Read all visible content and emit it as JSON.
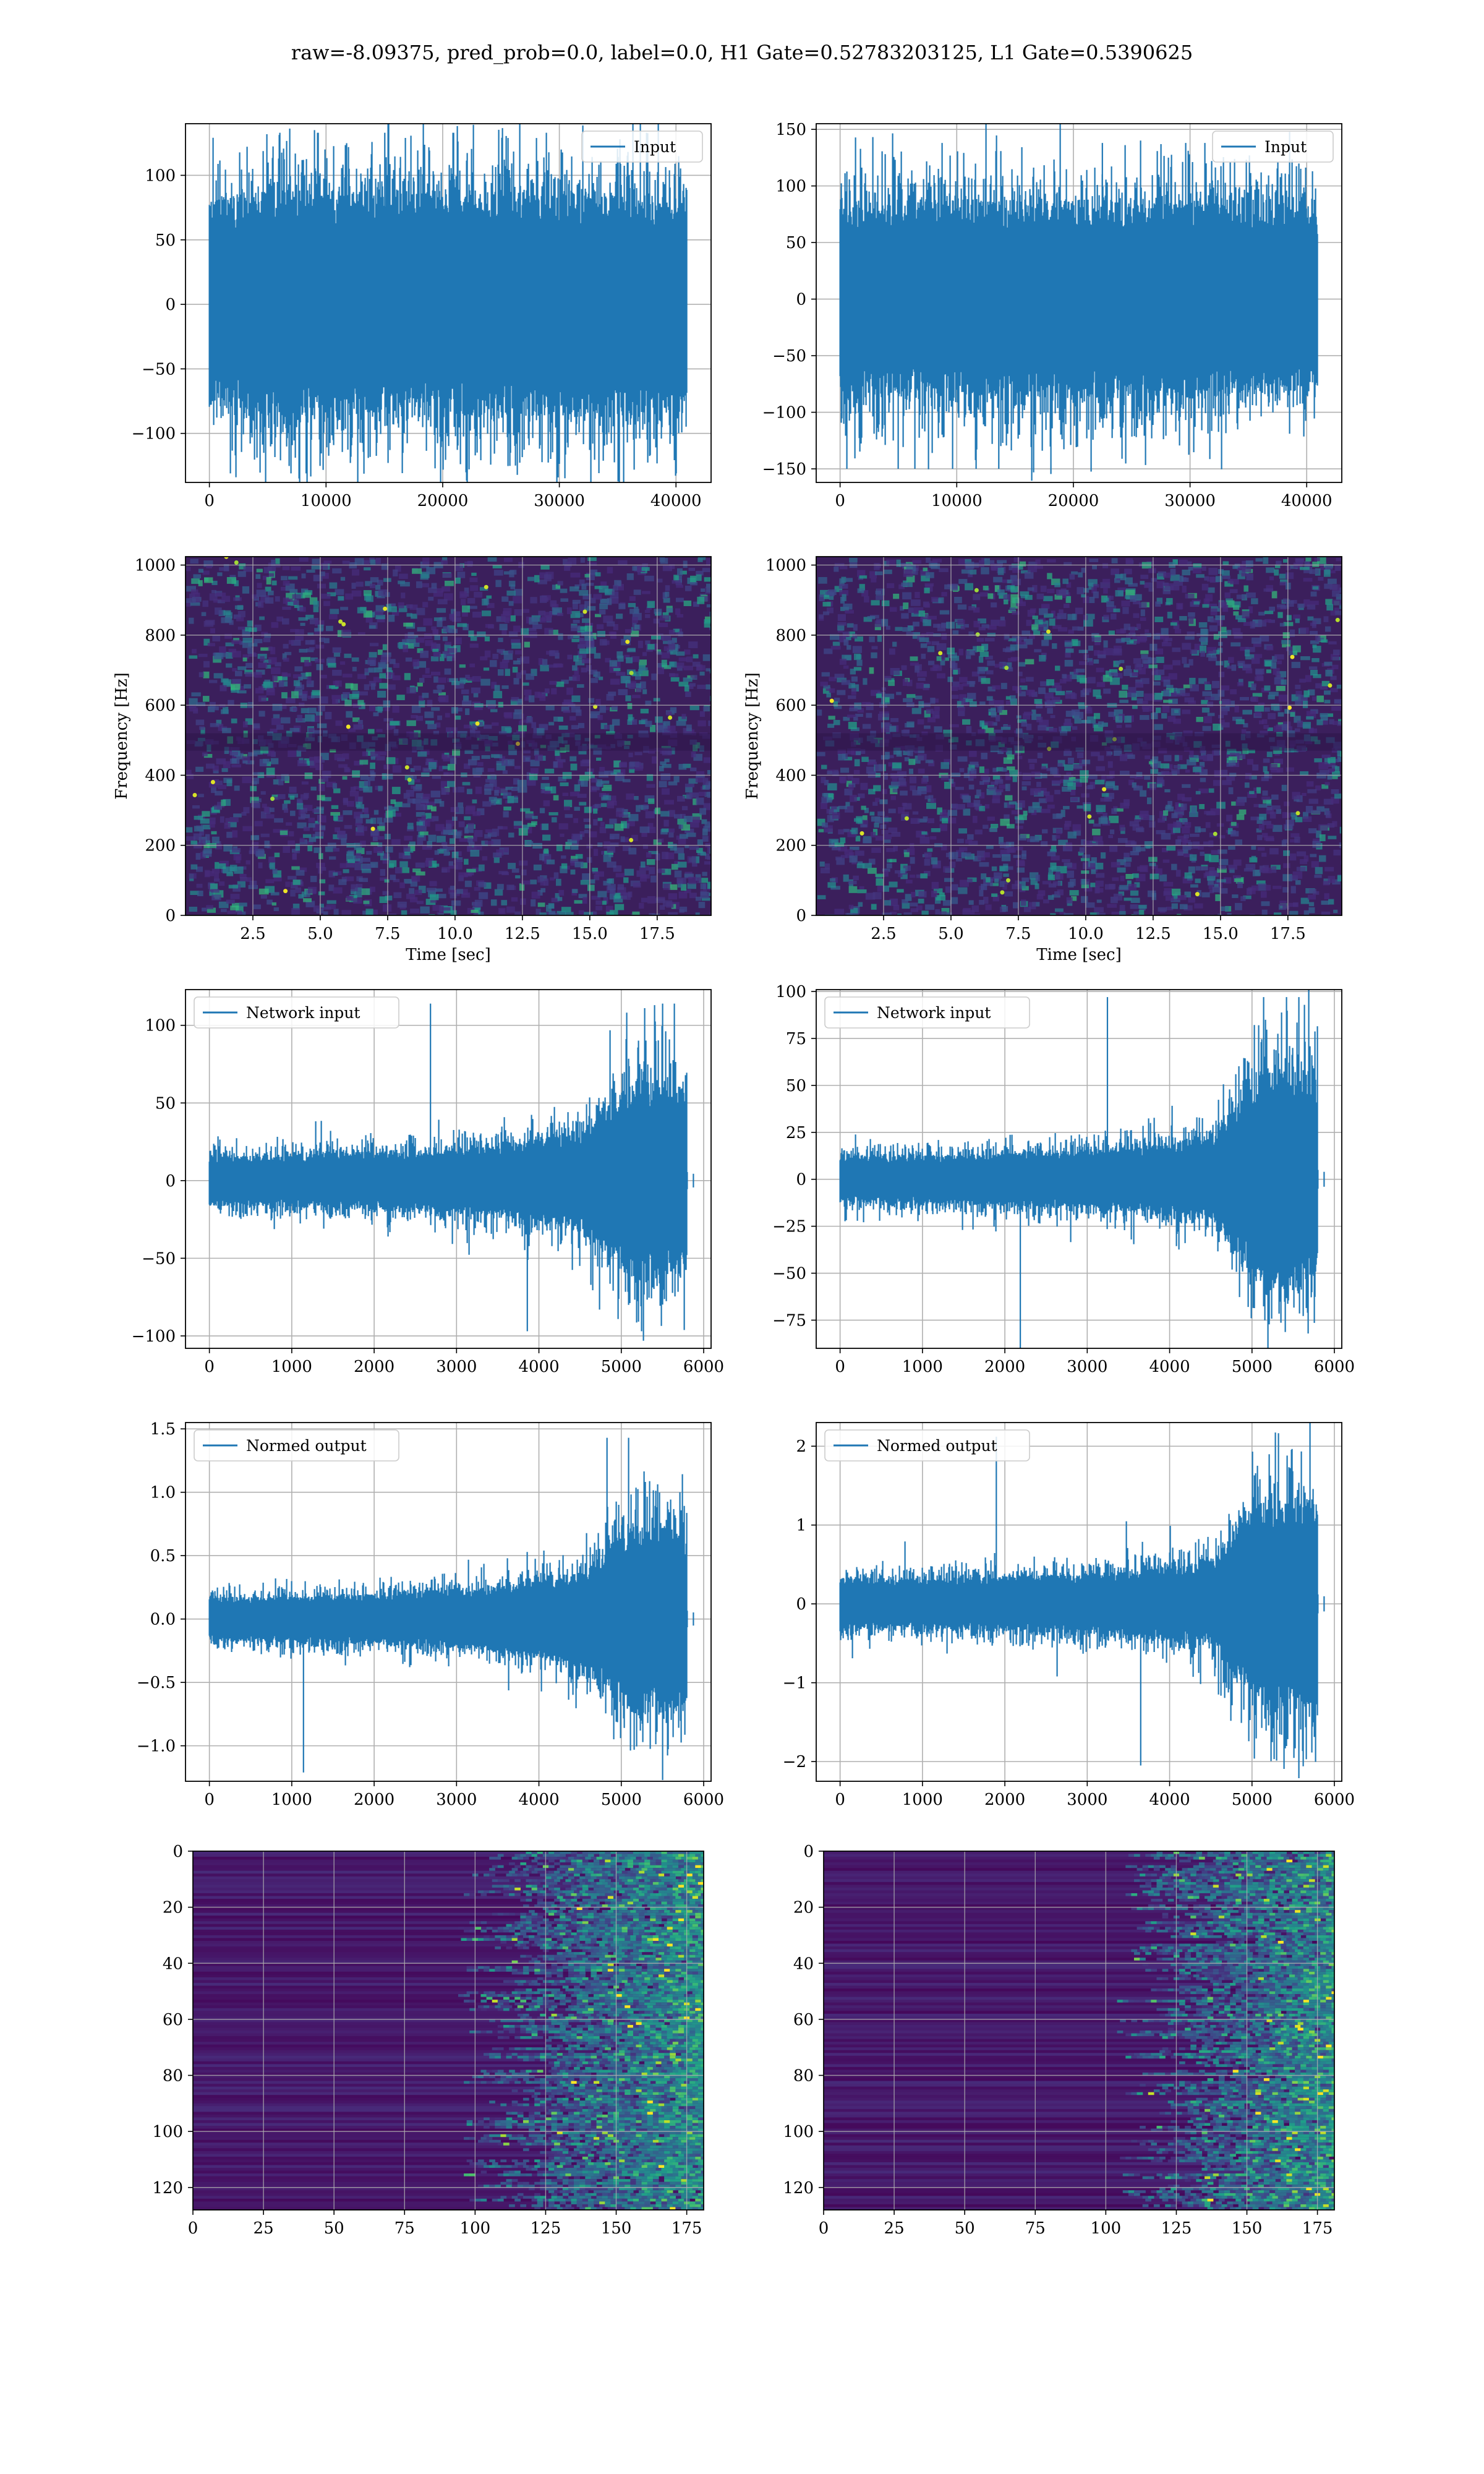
{
  "figure": {
    "suptitle": "raw=-8.09375, pred_prob=0.0, label=0.0, H1 Gate=0.52783203125, L1 Gate=0.5390625",
    "series_color": "#1f77b4",
    "grid_color": "#b0b0b0"
  },
  "chart_data": [
    {
      "id": "h1-input",
      "type": "line",
      "title": "",
      "legend": {
        "label": "Input",
        "placement": "upper-right"
      },
      "xlabel": "",
      "ylabel": "",
      "xlim": [
        -2048,
        43008
      ],
      "ylim": [
        -138,
        140
      ],
      "xticks": [
        0,
        10000,
        20000,
        30000,
        40000
      ],
      "yticks": [
        -100,
        -50,
        0,
        50,
        100
      ],
      "signal": {
        "n_samples": 40960,
        "envelope": [
          75,
          80,
          80,
          80,
          80,
          80,
          80,
          80,
          80,
          75
        ],
        "peak_max": 133,
        "peak_min": -131
      },
      "grid": true
    },
    {
      "id": "l1-input",
      "type": "line",
      "title": "",
      "legend": {
        "label": "Input",
        "placement": "upper-right"
      },
      "xlabel": "",
      "ylabel": "",
      "xlim": [
        -2048,
        43008
      ],
      "ylim": [
        -162,
        155
      ],
      "xticks": [
        0,
        10000,
        20000,
        30000,
        40000
      ],
      "yticks": [
        -150,
        -100,
        -50,
        0,
        50,
        100,
        150
      ],
      "signal": {
        "n_samples": 40960,
        "envelope": [
          75,
          80,
          80,
          80,
          80,
          80,
          80,
          80,
          80,
          70
        ],
        "peak_max": 138,
        "peak_min": -150
      },
      "grid": true
    },
    {
      "id": "h1-spectrogram",
      "type": "heatmap",
      "title": "",
      "xlabel": "Time [sec]",
      "ylabel": "Frequency [Hz]",
      "xlim": [
        0,
        19.5
      ],
      "ylim": [
        0,
        1024
      ],
      "xticks": [
        2.5,
        5.0,
        7.5,
        10.0,
        12.5,
        15.0,
        17.5
      ],
      "yticks": [
        0,
        200,
        400,
        600,
        800,
        1000
      ],
      "colormap": "viridis",
      "background": "#3b1f5c",
      "grid": true
    },
    {
      "id": "l1-spectrogram",
      "type": "heatmap",
      "title": "",
      "xlabel": "Time [sec]",
      "ylabel": "Frequency [Hz]",
      "xlim": [
        0,
        19.5
      ],
      "ylim": [
        0,
        1024
      ],
      "xticks": [
        2.5,
        5.0,
        7.5,
        10.0,
        12.5,
        15.0,
        17.5
      ],
      "yticks": [
        0,
        200,
        400,
        600,
        800,
        1000
      ],
      "colormap": "viridis",
      "background": "#3b1f5c",
      "grid": true
    },
    {
      "id": "h1-network-input",
      "type": "line",
      "title": "",
      "legend": {
        "label": "Network input",
        "placement": "upper-left"
      },
      "xlabel": "",
      "ylabel": "",
      "xlim": [
        -290,
        6090
      ],
      "ylim": [
        -108,
        123
      ],
      "xticks": [
        0,
        1000,
        2000,
        3000,
        4000,
        5000,
        6000
      ],
      "yticks": [
        -100,
        -50,
        0,
        50,
        100
      ],
      "signal": {
        "n_samples": 5800,
        "envelope": [
          15,
          15,
          16,
          17,
          18,
          20,
          24,
          30,
          60,
          55
        ],
        "peak_max": 114,
        "peak_min": -97
      },
      "grid": true
    },
    {
      "id": "l1-network-input",
      "type": "line",
      "title": "",
      "legend": {
        "label": "Network input",
        "placement": "upper-left"
      },
      "xlabel": "",
      "ylabel": "",
      "xlim": [
        -290,
        6090
      ],
      "ylim": [
        -90,
        101
      ],
      "xticks": [
        0,
        1000,
        2000,
        3000,
        4000,
        5000,
        6000
      ],
      "yticks": [
        -75,
        -50,
        -25,
        0,
        25,
        50,
        75,
        100
      ],
      "signal": {
        "n_samples": 5800,
        "envelope": [
          12,
          12,
          12,
          13,
          14,
          15,
          17,
          20,
          55,
          50
        ],
        "peak_max": 97,
        "peak_min": -90
      },
      "grid": true
    },
    {
      "id": "h1-normed-output",
      "type": "line",
      "title": "",
      "legend": {
        "label": "Normed output",
        "placement": "upper-left"
      },
      "xlabel": "",
      "ylabel": "",
      "xlim": [
        -290,
        6090
      ],
      "ylim": [
        -1.28,
        1.55
      ],
      "xticks": [
        0,
        1000,
        2000,
        3000,
        4000,
        5000,
        6000
      ],
      "yticks": [
        -1.0,
        -0.5,
        0.0,
        0.5,
        1.0,
        1.5
      ],
      "signal": {
        "n_samples": 5800,
        "envelope": [
          0.16,
          0.16,
          0.17,
          0.18,
          0.2,
          0.22,
          0.27,
          0.33,
          0.7,
          0.65
        ],
        "peak_max": 1.43,
        "peak_min": -1.21
      },
      "grid": true
    },
    {
      "id": "l1-normed-output",
      "type": "line",
      "title": "",
      "legend": {
        "label": "Normed output",
        "placement": "upper-left"
      },
      "xlabel": "",
      "ylabel": "",
      "xlim": [
        -290,
        6090
      ],
      "ylim": [
        -2.25,
        2.3
      ],
      "xticks": [
        0,
        1000,
        2000,
        3000,
        4000,
        5000,
        6000
      ],
      "yticks": [
        -2,
        -1,
        0,
        1,
        2
      ],
      "signal": {
        "n_samples": 5800,
        "envelope": [
          0.3,
          0.3,
          0.3,
          0.32,
          0.34,
          0.36,
          0.42,
          0.5,
          1.3,
          1.2
        ],
        "peak_max": 2.12,
        "peak_min": -2.05
      },
      "grid": true
    },
    {
      "id": "h1-feature-map",
      "type": "heatmap",
      "title": "",
      "xlabel": "",
      "ylabel": "",
      "xlim": [
        0,
        181
      ],
      "ylim": [
        128,
        0
      ],
      "xticks": [
        0,
        25,
        50,
        75,
        100,
        125,
        150,
        175
      ],
      "yticks": [
        0,
        20,
        40,
        60,
        80,
        100,
        120
      ],
      "colormap": "viridis",
      "onset_column": 105,
      "grid": true
    },
    {
      "id": "l1-feature-map",
      "type": "heatmap",
      "title": "",
      "xlabel": "",
      "ylabel": "",
      "xlim": [
        0,
        181
      ],
      "ylim": [
        128,
        0
      ],
      "xticks": [
        0,
        25,
        50,
        75,
        100,
        125,
        150,
        175
      ],
      "yticks": [
        0,
        20,
        40,
        60,
        80,
        100,
        120
      ],
      "colormap": "viridis",
      "onset_column": 115,
      "grid": true
    }
  ]
}
